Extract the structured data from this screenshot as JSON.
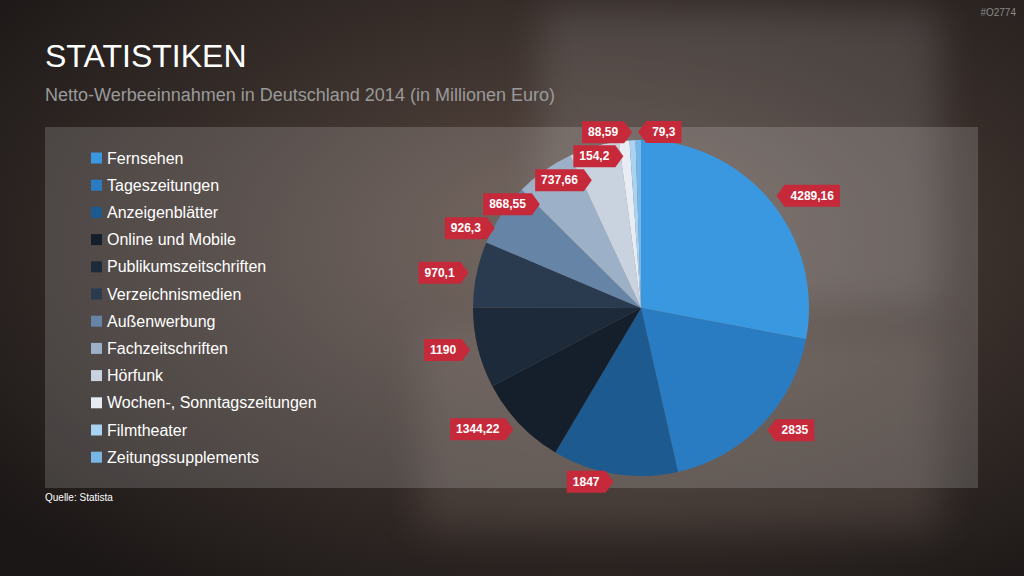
{
  "header": {
    "heading": "STATISTIKEN",
    "code": "#O2774"
  },
  "chart_data": {
    "type": "pie",
    "title": "Netto-Werbeeinnahmen in Deutschland 2014 (in Millionen Euro)",
    "source": "Quelle: Statista",
    "categories": [
      "Fernsehen",
      "Tageszeitungen",
      "Anzeigenblätter",
      "Online und Mobile",
      "Publikumszeitschriften",
      "Verzeichnismedien",
      "Außenwerbung",
      "Fachzeitschriften",
      "Hörfunk",
      "Wochen-, Sonntagszeitungen",
      "Filmtheater",
      "Zeitungssupplements"
    ],
    "values": [
      4289.16,
      2835,
      1847,
      1344.22,
      1190,
      970.1,
      926.3,
      868.55,
      737.66,
      154.2,
      88.59,
      79.3
    ],
    "value_labels": [
      "4289,16",
      "2835",
      "1847",
      "1344,22",
      "1190",
      "970,1",
      "926,3",
      "868,55",
      "737,66",
      "154,2",
      "88,59",
      "79,3"
    ],
    "colors": [
      "#3a98e0",
      "#2a7cc2",
      "#1c5a90",
      "#141f2b",
      "#1d2a39",
      "#2a3b50",
      "#6584a6",
      "#9cb0c7",
      "#c9d3df",
      "#e8edf3",
      "#a8d3f2",
      "#78b6e6"
    ],
    "legend": "left",
    "data_labels": true
  }
}
